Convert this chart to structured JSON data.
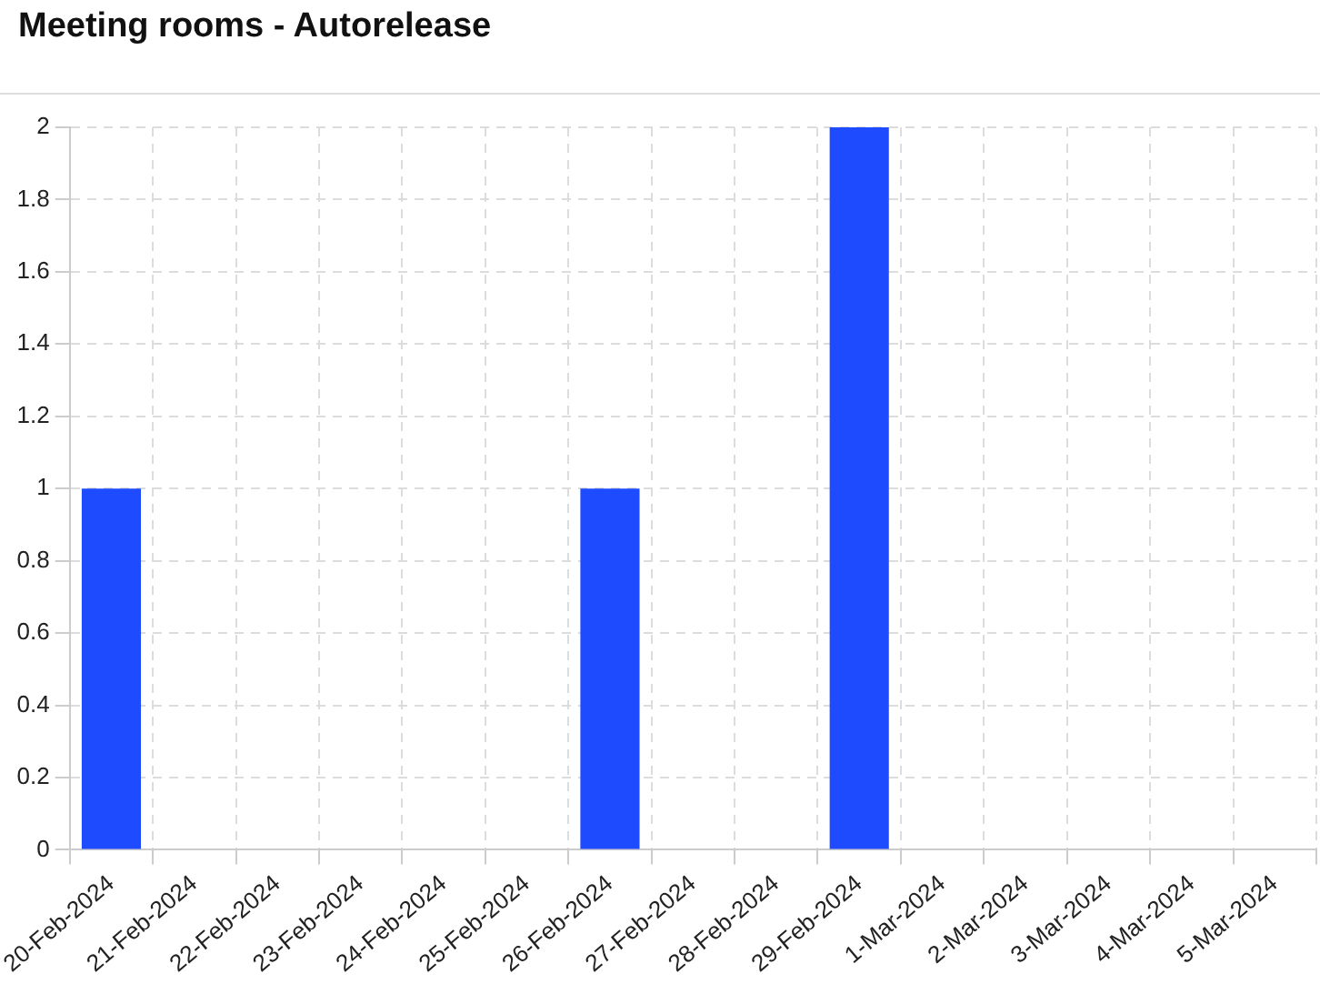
{
  "chart_data": {
    "type": "bar",
    "title": "Meeting rooms - Autorelease",
    "categories": [
      "20-Feb-2024",
      "21-Feb-2024",
      "22-Feb-2024",
      "23-Feb-2024",
      "24-Feb-2024",
      "25-Feb-2024",
      "26-Feb-2024",
      "27-Feb-2024",
      "28-Feb-2024",
      "29-Feb-2024",
      "1-Mar-2024",
      "2-Mar-2024",
      "3-Mar-2024",
      "4-Mar-2024",
      "5-Mar-2024"
    ],
    "values": [
      1,
      0,
      0,
      0,
      0,
      0,
      1,
      0,
      0,
      2,
      0,
      0,
      0,
      0,
      0
    ],
    "color": "#1f4bff",
    "ylim": [
      0,
      2
    ],
    "yticks": [
      0,
      0.2,
      0.4,
      0.6,
      0.8,
      1,
      1.2,
      1.4,
      1.6,
      1.8,
      2
    ],
    "grid": true,
    "legend": false
  }
}
